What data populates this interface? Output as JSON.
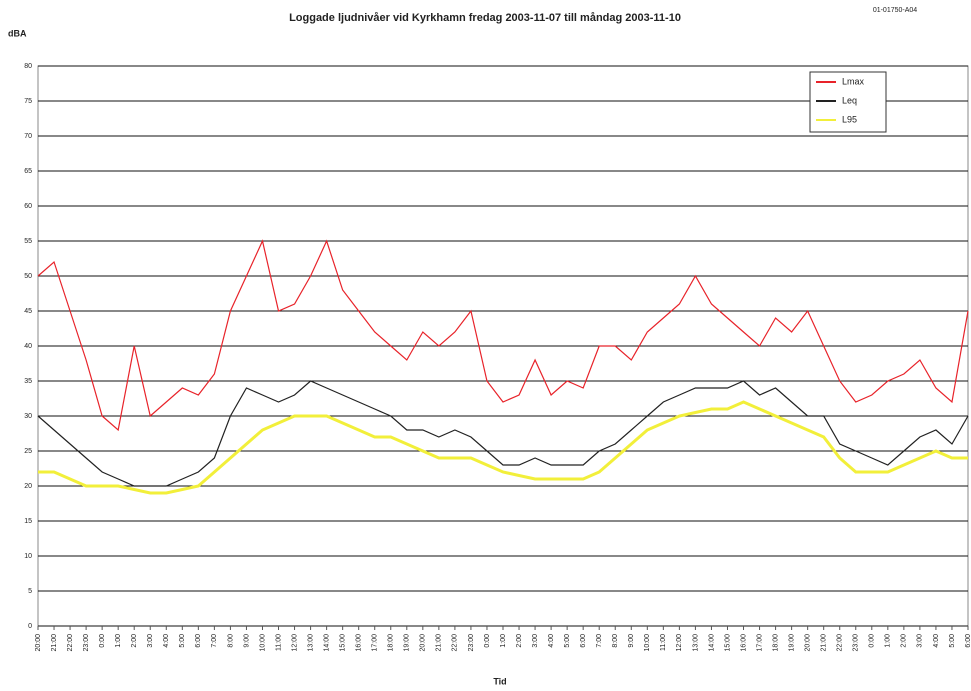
{
  "chart_data": {
    "type": "line",
    "title": "Loggade ljudnivåer vid Kyrkhamn fredag 2003-11-07 till måndag 2003-11-10",
    "code": "01-01750-A04",
    "y_label": "dBA",
    "x_label": "Tid",
    "categories": [
      "20:00",
      "21:00",
      "22:00",
      "23:00",
      "0:00",
      "1:00",
      "2:00",
      "3:00",
      "4:00",
      "5:00",
      "6:00",
      "7:00",
      "8:00",
      "9:00",
      "10:00",
      "11:00",
      "12:00",
      "13:00",
      "14:00",
      "15:00",
      "16:00",
      "17:00",
      "18:00",
      "19:00",
      "20:00",
      "21:00",
      "22:00",
      "23:00",
      "0:00",
      "1:00",
      "2:00",
      "3:00",
      "4:00",
      "5:00",
      "6:00",
      "7:00",
      "8:00",
      "9:00",
      "10:00",
      "11:00",
      "12:00",
      "13:00",
      "14:00",
      "15:00",
      "16:00",
      "17:00",
      "18:00",
      "19:00",
      "20:00",
      "21:00",
      "22:00",
      "23:00",
      "0:00",
      "1:00",
      "2:00",
      "3:00",
      "4:00",
      "5:00",
      "6:00"
    ],
    "series": [
      {
        "name": "Lmax",
        "color": "#e8232a",
        "values": [
          50,
          52,
          45,
          38,
          30,
          28,
          40,
          30,
          32,
          34,
          33,
          36,
          45,
          50,
          55,
          45,
          46,
          50,
          55,
          48,
          45,
          42,
          40,
          38,
          42,
          40,
          42,
          45,
          35,
          32,
          33,
          38,
          33,
          35,
          34,
          40,
          40,
          38,
          42,
          44,
          46,
          50,
          46,
          44,
          42,
          40,
          44,
          42,
          45,
          40,
          35,
          32,
          33,
          35,
          36,
          38,
          34,
          32,
          45
        ]
      },
      {
        "name": "Leq",
        "color": "#222222",
        "values": [
          30,
          28,
          26,
          24,
          22,
          21,
          20,
          20,
          20,
          21,
          22,
          24,
          30,
          34,
          33,
          32,
          33,
          35,
          34,
          33,
          32,
          31,
          30,
          28,
          28,
          27,
          28,
          27,
          25,
          23,
          23,
          24,
          23,
          23,
          23,
          25,
          26,
          28,
          30,
          32,
          33,
          34,
          34,
          34,
          35,
          33,
          34,
          32,
          30,
          30,
          26,
          25,
          24,
          23,
          25,
          27,
          28,
          26,
          30
        ]
      },
      {
        "name": "L95",
        "color": "#f2ef3a",
        "values": [
          22,
          22,
          21,
          20,
          20,
          20,
          19.5,
          19,
          19,
          19.5,
          20,
          22,
          24,
          26,
          28,
          29,
          30,
          30,
          30,
          29,
          28,
          27,
          27,
          26,
          25,
          24,
          24,
          24,
          23,
          22,
          21.5,
          21,
          21,
          21,
          21,
          22,
          24,
          26,
          28,
          29,
          30,
          30.5,
          31,
          31,
          32,
          31,
          30,
          29,
          28,
          27,
          24,
          22,
          22,
          22,
          23,
          24,
          25,
          24,
          24
        ]
      }
    ],
    "ylim": [
      0,
      80
    ],
    "yticks": [
      0,
      5,
      10,
      15,
      20,
      25,
      30,
      35,
      40,
      45,
      50,
      55,
      60,
      65,
      70,
      75,
      80
    ],
    "grid": true,
    "legend": "top-right"
  }
}
